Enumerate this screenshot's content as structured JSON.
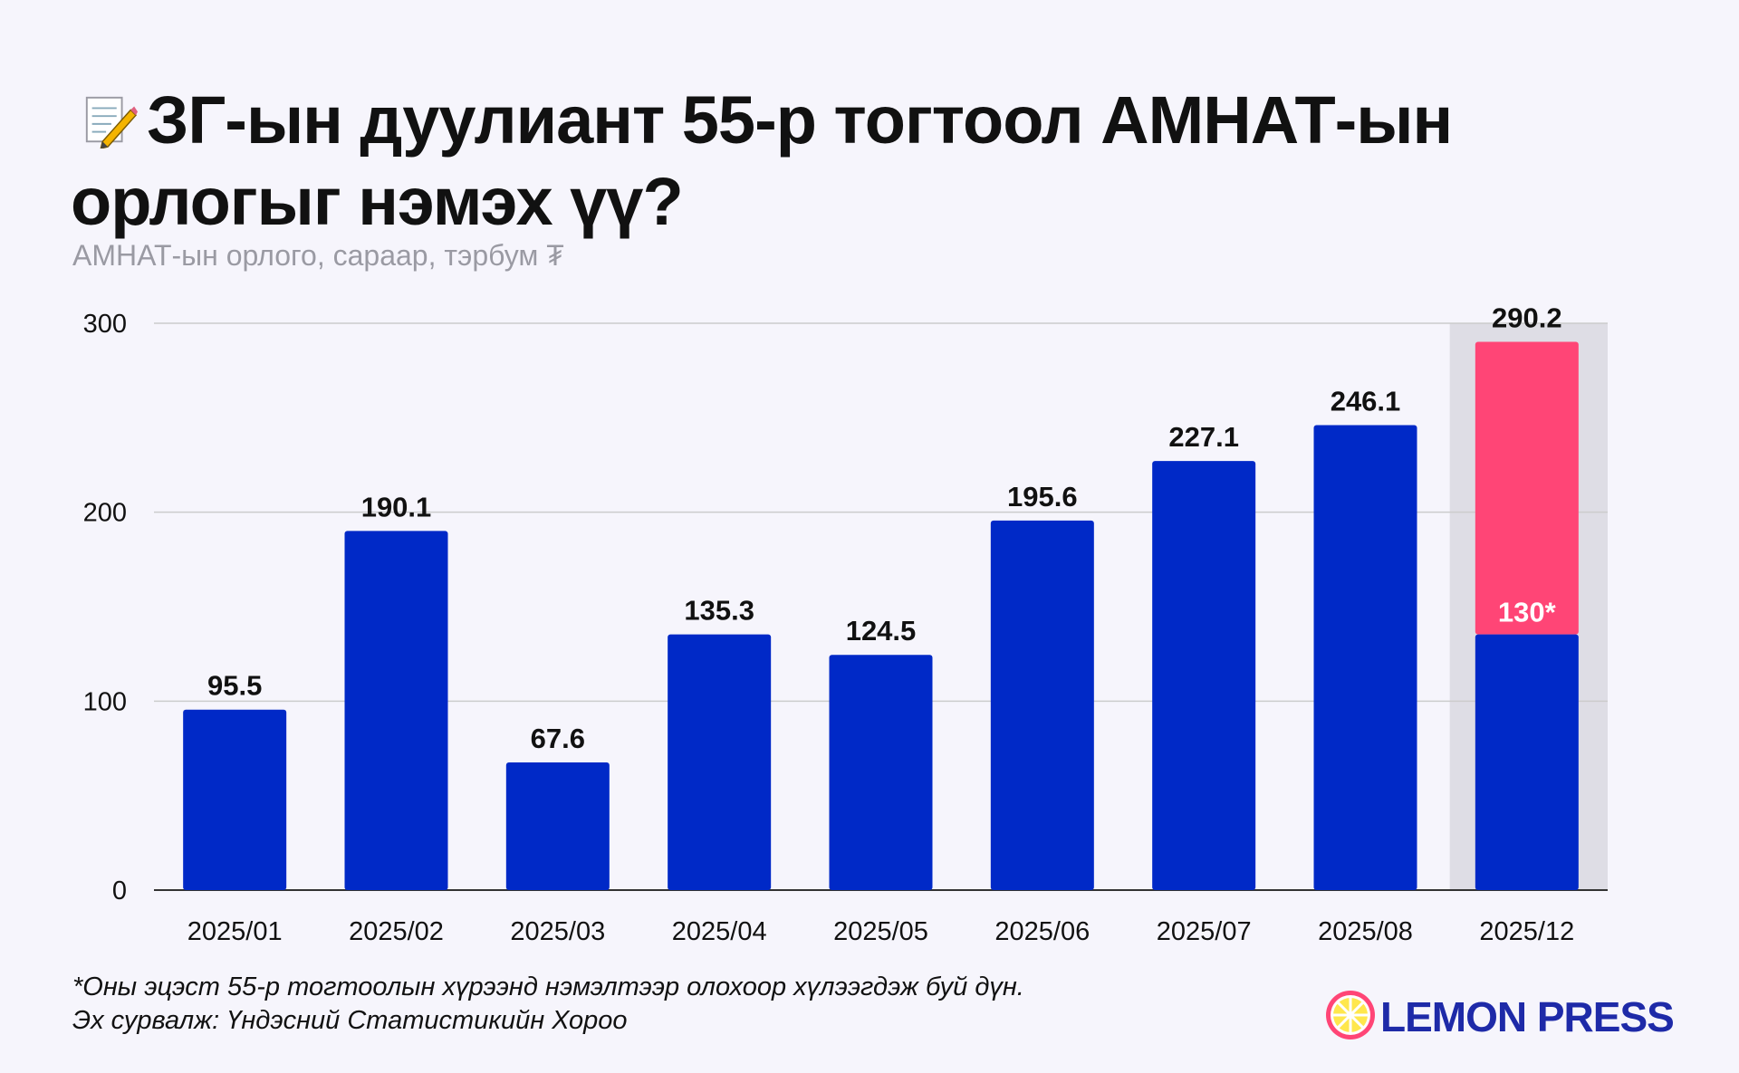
{
  "title": "ЗГ-ын дуулиант 55-р тогтоол АМНАТ-ын орлогыг нэмэх үү?",
  "title_icon": "memo-pencil-icon",
  "subtitle": "АМНАТ-ын орлого, сараар, тэрбум ₮",
  "footnote": "*Оны эцэст 55-р тогтоолын хүрээнд нэмэлтээр олохоор хүлээгдэж буй дүн.",
  "source": "Эх сурвалж: Үндэсний Статистикийн Хороо",
  "logo": {
    "text": "LEMON PRESS",
    "icon": "lemon-slice-icon"
  },
  "colors": {
    "bar": "#0029c7",
    "highlight": "#ff4576",
    "highlight_bg": "#dedde5",
    "highlight_label": "#ffffff",
    "grid": "#cccccc",
    "axis": "#333333",
    "logo": "#1e2aa8"
  },
  "chart_data": {
    "type": "bar",
    "categories": [
      "2025/01",
      "2025/02",
      "2025/03",
      "2025/04",
      "2025/05",
      "2025/06",
      "2025/07",
      "2025/08",
      "2025/12"
    ],
    "values": [
      95.5,
      190.1,
      67.6,
      135.3,
      124.5,
      195.6,
      227.1,
      246.1,
      290.2
    ],
    "value_labels": [
      "95.5",
      "190.1",
      "67.6",
      "135.3",
      "124.5",
      "195.6",
      "227.1",
      "246.1",
      "290.2"
    ],
    "highlight": {
      "category": "2025/12",
      "base_value": 135.3,
      "projected_extra_label": "130*"
    },
    "y_ticks": [
      0,
      100,
      200,
      300
    ],
    "ylim": [
      0,
      300
    ],
    "grid": true,
    "legend": "none"
  }
}
